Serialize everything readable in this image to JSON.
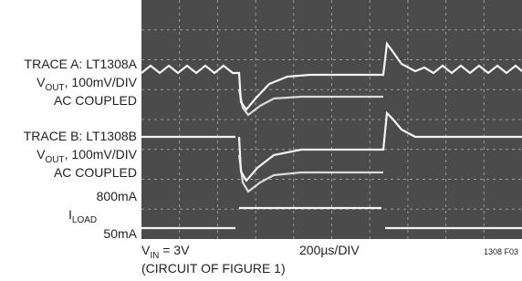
{
  "labels": {
    "trace_a_title": "TRACE A: LT1308A",
    "trace_a_scale": {
      "main": "V",
      "sub": "OUT",
      "rest": ", 100mV/DIV"
    },
    "trace_a_coupling": "AC COUPLED",
    "trace_b_title": "TRACE B: LT1308B",
    "trace_b_scale": {
      "main": "V",
      "sub": "OUT",
      "rest": ", 100mV/DIV"
    },
    "trace_b_coupling": "AC COUPLED",
    "load_high": "800mA",
    "load_name": {
      "main": "I",
      "sub": "LOAD"
    },
    "load_low": "50mA"
  },
  "footer": {
    "vin": {
      "main": "V",
      "sub": "IN",
      "rest": " = 3V"
    },
    "circuit": "(CIRCUIT OF FIGURE 1)",
    "timebase": "200µs/DIV",
    "figure_id": "1308 F03"
  }
}
